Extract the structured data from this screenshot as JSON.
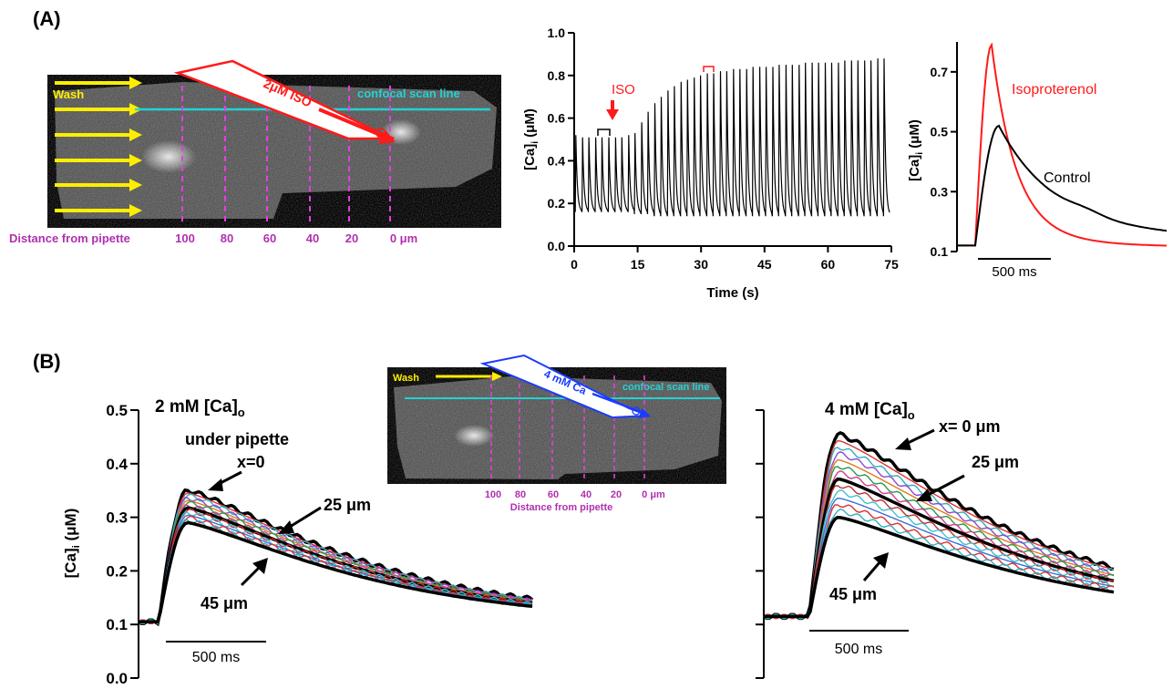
{
  "panels": {
    "a_label": "(A)",
    "b_label": "(B)"
  },
  "micrograph_a": {
    "wash_label": "Wash",
    "pipette_label": "2μM ISO",
    "scan_line_label": "confocal scan line",
    "distance_label": "Distance from pipette",
    "distance_ticks": [
      "100",
      "80",
      "60",
      "40",
      "20",
      "0 μm"
    ]
  },
  "micrograph_b": {
    "wash_label": "Wash",
    "pipette_label": "4 mM Ca",
    "scan_line_label": "confocal scan line",
    "distance_label": "Distance from pipette",
    "distance_ticks": [
      "100",
      "80",
      "60",
      "40",
      "20",
      "0 μm"
    ]
  },
  "colors": {
    "iso_red": "#ff1a1a",
    "ca_blue": "#1a3cff",
    "scan_line_cyan": "#22d3d3",
    "dashed_magenta": "#e040e0",
    "distance_text_magenta": "#b030b0",
    "wash_yellow": "#ffee00",
    "trace_black": "#000000"
  },
  "chart_data": [
    {
      "id": "A-time-course",
      "type": "line",
      "xlabel": "Time (s)",
      "ylabel": "[Ca]i (μM)",
      "xlim": [
        0,
        75
      ],
      "ylim": [
        0,
        1.0
      ],
      "x_ticks": [
        "0",
        "15",
        "30",
        "45",
        "60",
        "75"
      ],
      "y_ticks": [
        "0.0",
        "0.2",
        "0.4",
        "0.6",
        "0.8",
        "1.0"
      ],
      "annotations": [
        {
          "text": "ISO",
          "x": 8.5,
          "y": 0.74,
          "color": "red"
        }
      ],
      "series": [
        {
          "transient_times_s": [
            0.3,
            1.9,
            3.4,
            5.0,
            6.5,
            8.1,
            9.7,
            11.2,
            12.8,
            14.3,
            15.9,
            17.4,
            19.0,
            20.5,
            22.1,
            23.6,
            25.2,
            26.7,
            28.3,
            29.8,
            31.4,
            32.9,
            34.5,
            36.0,
            37.6,
            39.1,
            40.7,
            42.2,
            43.8,
            45.3,
            46.9,
            48.4,
            50.0,
            51.5,
            53.1,
            54.6,
            56.2,
            57.7,
            59.3,
            60.8,
            62.4,
            63.9,
            65.5,
            67.0,
            68.6,
            70.1,
            71.7,
            73.2
          ],
          "peak_uM": [
            0.52,
            0.51,
            0.51,
            0.51,
            0.51,
            0.51,
            0.51,
            0.51,
            0.52,
            0.53,
            0.58,
            0.63,
            0.67,
            0.7,
            0.73,
            0.75,
            0.77,
            0.78,
            0.79,
            0.8,
            0.81,
            0.81,
            0.82,
            0.82,
            0.83,
            0.83,
            0.83,
            0.84,
            0.84,
            0.84,
            0.84,
            0.85,
            0.85,
            0.85,
            0.85,
            0.86,
            0.86,
            0.86,
            0.86,
            0.86,
            0.86,
            0.87,
            0.87,
            0.87,
            0.87,
            0.87,
            0.88,
            0.88
          ],
          "diastolic_uM": [
            0.16,
            0.16,
            0.16,
            0.16,
            0.16,
            0.16,
            0.16,
            0.16,
            0.16,
            0.15,
            0.15,
            0.15,
            0.14,
            0.14,
            0.14,
            0.14,
            0.14,
            0.14,
            0.14,
            0.14,
            0.14,
            0.14,
            0.14,
            0.14,
            0.14,
            0.14,
            0.14,
            0.14,
            0.14,
            0.14,
            0.14,
            0.14,
            0.14,
            0.14,
            0.14,
            0.14,
            0.14,
            0.14,
            0.14,
            0.14,
            0.14,
            0.14,
            0.14,
            0.14,
            0.14,
            0.14,
            0.14,
            0.14
          ]
        }
      ]
    },
    {
      "id": "A-overlay",
      "type": "line",
      "xlabel": "",
      "ylabel": "[Ca]i (μM)",
      "ylim": [
        0.1,
        0.8
      ],
      "y_ticks": [
        "0.1",
        "0.3",
        "0.5",
        "0.7"
      ],
      "scale_bar": "500 ms",
      "series": [
        {
          "name": "Isoproterenol",
          "color": "red",
          "baseline_uM": 0.12,
          "peak_uM": 0.79,
          "end_uM": 0.115
        },
        {
          "name": "Control",
          "color": "black",
          "baseline_uM": 0.12,
          "peak_uM": 0.52,
          "end_uM": 0.135
        }
      ]
    },
    {
      "id": "B-2mM",
      "type": "line",
      "title": "2 mM [Ca]o",
      "ylabel": "[Ca]i (μM)",
      "ylim": [
        0.0,
        0.5
      ],
      "y_ticks": [
        "0.0",
        "0.1",
        "0.2",
        "0.3",
        "0.4",
        "0.5"
      ],
      "scale_bar": "500 ms",
      "annotations": [
        "under pipette",
        "x=0",
        "25 μm",
        "45 μm"
      ],
      "series": [
        {
          "name": "x=0",
          "peak_uM": 0.35,
          "baseline_uM": 0.105,
          "end_uM": 0.11
        },
        {
          "name": "45 μm",
          "peak_uM": 0.29,
          "baseline_uM": 0.105,
          "end_uM": 0.105
        }
      ]
    },
    {
      "id": "B-4mM",
      "type": "line",
      "title": "4 mM [Ca]o",
      "ylim": [
        0.0,
        0.5
      ],
      "scale_bar": "500 ms",
      "annotations": [
        "x= 0 μm",
        "25 μm",
        "45 μm"
      ],
      "series": [
        {
          "name": "x= 0 μm",
          "peak_uM": 0.455,
          "baseline_uM": 0.115,
          "end_uM": 0.125
        },
        {
          "name": "45 μm",
          "peak_uM": 0.3,
          "baseline_uM": 0.115,
          "end_uM": 0.115
        }
      ]
    }
  ]
}
